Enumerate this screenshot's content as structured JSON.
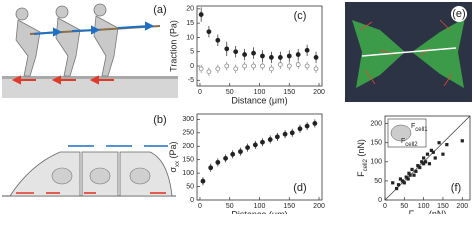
{
  "illustrations": [
    {
      "panel_label": "(a)"
    },
    {
      "panel_label": "(b)"
    },
    {
      "panel_label": "(e)"
    }
  ],
  "chart_data": [
    {
      "type": "scatter",
      "panel_label": "(c)",
      "x_label": "Distance (μm)",
      "y_label": "Traction (Pa)",
      "xlim": [
        -5,
        205
      ],
      "ylim": [
        -7,
        21
      ],
      "xticks": [
        0,
        50,
        100,
        150,
        200
      ],
      "yticks": [
        -5,
        0,
        5,
        10,
        15,
        20
      ],
      "x": [
        2,
        15,
        30,
        45,
        60,
        75,
        90,
        105,
        120,
        135,
        150,
        165,
        180,
        195
      ],
      "series": [
        {
          "marker": "filled",
          "color": "#222222",
          "values": [
            18,
            12,
            9,
            6,
            5,
            4,
            4.5,
            3.5,
            3,
            3,
            3.5,
            4,
            5.5,
            3
          ],
          "errors": [
            2.5,
            2,
            2,
            2.5,
            2,
            2,
            2,
            2,
            2,
            2,
            2,
            2,
            2,
            2
          ]
        },
        {
          "marker": "open",
          "color": "#888888",
          "values": [
            -1,
            -2,
            -1,
            0,
            -1,
            0,
            0,
            0,
            -1,
            0.5,
            0,
            0.5,
            0,
            -1
          ],
          "errors": [
            1.5,
            1.5,
            1.5,
            1.5,
            1.5,
            1.5,
            1.5,
            1.5,
            1.5,
            1.5,
            1.5,
            1.5,
            1.5,
            1.5
          ]
        }
      ]
    },
    {
      "type": "scatter",
      "panel_label": "(d)",
      "x_label": "Distance (μm)",
      "y_label": {
        "symbol": "σ",
        "subscript": "xx",
        "unit": " (Pa)"
      },
      "xlim": [
        -5,
        205
      ],
      "ylim": [
        0,
        320
      ],
      "xticks": [
        0,
        50,
        100,
        150,
        200
      ],
      "yticks": [
        0,
        50,
        100,
        150,
        200,
        250,
        300
      ],
      "x": [
        5,
        18,
        30,
        43,
        55,
        68,
        80,
        93,
        105,
        118,
        130,
        143,
        155,
        168,
        180,
        193
      ],
      "series": [
        {
          "marker": "filled",
          "color": "#222222",
          "values": [
            70,
            120,
            140,
            155,
            170,
            180,
            195,
            205,
            215,
            225,
            235,
            245,
            250,
            265,
            275,
            285
          ],
          "errors": [
            15,
            15,
            15,
            15,
            15,
            15,
            15,
            15,
            15,
            15,
            15,
            15,
            15,
            15,
            15,
            15
          ]
        }
      ]
    },
    {
      "type": "scatter",
      "panel_label": "(f)",
      "x_label": {
        "symbol": "F",
        "subscript": "cell1",
        "unit": " (nN)"
      },
      "y_label": {
        "symbol": "F",
        "subscript": "cell2",
        "unit": " (nN)"
      },
      "inset_labels": [
        {
          "symbol": "F",
          "subscript": "cell1"
        },
        {
          "symbol": "F",
          "subscript": "cell2"
        }
      ],
      "xlim": [
        0,
        220
      ],
      "ylim": [
        0,
        220
      ],
      "xticks": [
        0,
        50,
        100,
        150,
        200
      ],
      "yticks": [
        0,
        50,
        100,
        150,
        200
      ],
      "identity_line": true,
      "x": [
        20,
        30,
        35,
        40,
        45,
        50,
        55,
        60,
        62,
        65,
        70,
        75,
        80,
        85,
        90,
        95,
        100,
        100,
        105,
        110,
        115,
        120,
        125,
        130,
        140,
        150,
        160,
        200
      ],
      "series": [
        {
          "marker": "square",
          "color": "#222222",
          "values": [
            45,
            30,
            40,
            55,
            50,
            45,
            60,
            55,
            70,
            65,
            80,
            65,
            75,
            90,
            85,
            100,
            95,
            110,
            100,
            120,
            95,
            130,
            125,
            110,
            150,
            120,
            145,
            155
          ]
        }
      ]
    }
  ]
}
